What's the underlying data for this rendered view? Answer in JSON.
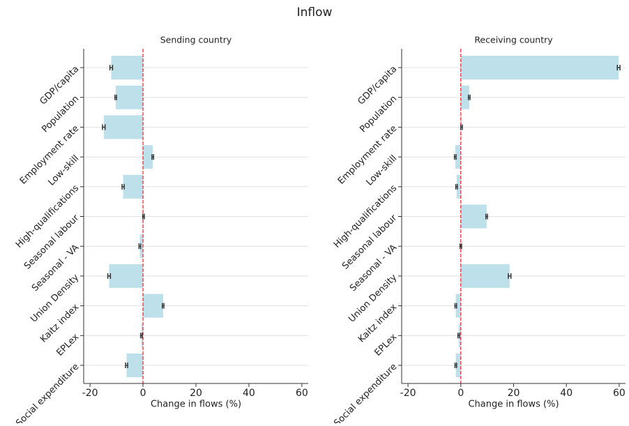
{
  "title": "Inflow",
  "chart_data": [
    {
      "type": "barh",
      "title": "Sending country",
      "xlabel": "Change in flows (%)",
      "categories": [
        "GDP/capita",
        "Population",
        "Employment rate",
        "Low-skill",
        "High-qualifications",
        "Seasonal labour",
        "Seasonal - VA",
        "Union Density",
        "Kaitz index",
        "EPLex",
        "Social expenditure"
      ],
      "values": [
        -12,
        -10.3,
        -14.8,
        3.7,
        -7.5,
        0.2,
        -1.2,
        -12.8,
        7.6,
        -0.6,
        -6.2
      ],
      "errors": [
        0.5,
        0.3,
        0.5,
        0.3,
        0.4,
        0.3,
        0.3,
        0.5,
        0.3,
        0.3,
        0.4
      ],
      "color": "#bde0eb",
      "xlim": [
        -22.4,
        62.4
      ],
      "xticks": [
        -20,
        0,
        20,
        40,
        60
      ],
      "grid": true
    },
    {
      "type": "barh",
      "title": "Receiving country",
      "xlabel": "Change in flows (%)",
      "categories": [
        "GDP/capita",
        "Population",
        "Employment rate",
        "Low-skill",
        "High-qualifications",
        "Seasonal labour",
        "Seasonal - VA",
        "Union Density",
        "Kaitz index",
        "EPLex",
        "Social expenditure"
      ],
      "values": [
        59.8,
        3.2,
        0.3,
        -2.1,
        -1.6,
        9.8,
        0,
        18.5,
        -1.9,
        -0.8,
        -1.9
      ],
      "errors": [
        0.5,
        0.3,
        0.3,
        0.3,
        0.3,
        0.3,
        0.3,
        0.5,
        0.3,
        0.3,
        0.3
      ],
      "color": "#bde0eb",
      "xlim": [
        -22.4,
        62.4
      ],
      "xticks": [
        -20,
        0,
        20,
        40,
        60
      ],
      "grid": true
    }
  ]
}
